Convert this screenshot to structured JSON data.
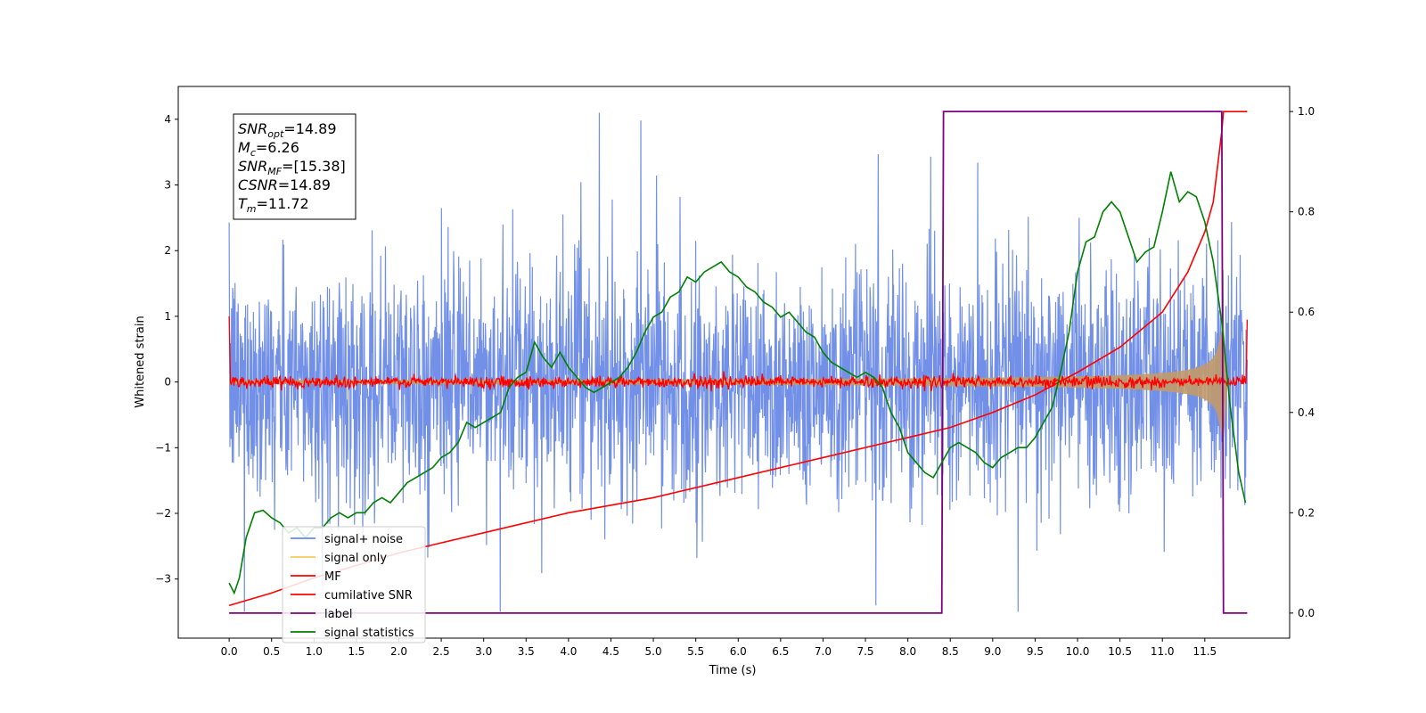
{
  "chart_data": {
    "type": "line",
    "xlabel": "Time (s)",
    "ylabel_left": "Whitened strain",
    "ylabel_right": "",
    "x_ticks": [
      "0.0",
      "0.5",
      "1.0",
      "1.5",
      "2.0",
      "2.5",
      "3.0",
      "3.5",
      "4.0",
      "4.5",
      "5.0",
      "5.5",
      "6.0",
      "6.5",
      "7.0",
      "7.5",
      "8.0",
      "8.5",
      "9.0",
      "9.5",
      "10.0",
      "10.5",
      "11.0",
      "11.5"
    ],
    "y_left_ticks": [
      "4",
      "3",
      "2",
      "1",
      "0",
      "−1",
      "−2",
      "−3"
    ],
    "y_right_ticks": [
      "1.0",
      "0.8",
      "0.6",
      "0.4",
      "0.2",
      "0.0"
    ],
    "xlim": [
      -0.6,
      12.5
    ],
    "ylim_left": [
      -3.9,
      4.5
    ],
    "ylim_right": [
      -0.05,
      1.05
    ],
    "legend_position": "lower-left",
    "annotation": {
      "lines": [
        {
          "name": "SNR",
          "sub": "opt",
          "value": "=14.89"
        },
        {
          "name": "M",
          "sub": "c",
          "value": "=6.26"
        },
        {
          "name": "SNR",
          "sub": "MF",
          "value": "=[15.38]"
        },
        {
          "name": "CSNR",
          "sub": "",
          "value": "=14.89"
        },
        {
          "name": "T",
          "sub": "m",
          "value": "=11.72"
        }
      ]
    },
    "series": [
      {
        "name": "signal+ noise",
        "color": "#6a8ae6",
        "axis": "left",
        "kind": "noise",
        "x_range": [
          0.0,
          12.0
        ],
        "approx_band": [
          -1.4,
          1.4
        ],
        "approx_extremes": [
          -3.5,
          4.1
        ]
      },
      {
        "name": "signal only",
        "color": "#f5c860",
        "axis": "left",
        "kind": "chirp",
        "x_range": [
          0.0,
          12.0
        ],
        "amplitude_at_start": 0.03,
        "amplitude_at_end": 0.9,
        "merger_time": 11.72
      },
      {
        "name": "MF",
        "color": "#ff0000",
        "axis": "left",
        "kind": "noise",
        "x_range": [
          0.0,
          12.0
        ],
        "approx_band": [
          -0.1,
          0.1
        ],
        "edge_values": [
          1.0,
          0.95
        ]
      },
      {
        "name": "cumilative SNR",
        "color": "#ff0000",
        "axis": "right",
        "x": [
          0.0,
          0.5,
          1.0,
          2.0,
          3.0,
          4.0,
          5.0,
          6.0,
          7.0,
          8.0,
          8.5,
          9.0,
          9.5,
          10.0,
          10.5,
          11.0,
          11.3,
          11.5,
          11.6,
          11.7,
          11.72,
          12.0
        ],
        "y": [
          0.015,
          0.04,
          0.07,
          0.12,
          0.16,
          0.2,
          0.23,
          0.27,
          0.31,
          0.35,
          0.37,
          0.4,
          0.435,
          0.48,
          0.53,
          0.6,
          0.68,
          0.76,
          0.82,
          0.96,
          1.0,
          1.0
        ]
      },
      {
        "name": "label",
        "color": "#800080",
        "axis": "right",
        "x": [
          0.0,
          8.4,
          8.42,
          11.7,
          11.72,
          12.0
        ],
        "y": [
          0.0,
          0.0,
          1.0,
          1.0,
          0.0,
          0.0
        ]
      },
      {
        "name": "signal statistics",
        "color": "#008000",
        "axis": "right",
        "x": [
          0.0,
          0.06,
          0.12,
          0.2,
          0.3,
          0.4,
          0.5,
          0.6,
          0.7,
          0.8,
          0.9,
          1.0,
          1.1,
          1.2,
          1.3,
          1.4,
          1.5,
          1.6,
          1.7,
          1.8,
          1.9,
          2.0,
          2.1,
          2.2,
          2.3,
          2.4,
          2.5,
          2.6,
          2.7,
          2.8,
          2.9,
          3.0,
          3.1,
          3.2,
          3.3,
          3.4,
          3.5,
          3.6,
          3.7,
          3.8,
          3.9,
          4.0,
          4.1,
          4.2,
          4.3,
          4.4,
          4.5,
          4.6,
          4.7,
          4.8,
          4.9,
          5.0,
          5.1,
          5.2,
          5.3,
          5.4,
          5.5,
          5.6,
          5.7,
          5.8,
          5.9,
          6.0,
          6.1,
          6.2,
          6.3,
          6.4,
          6.5,
          6.6,
          6.7,
          6.8,
          6.9,
          7.0,
          7.1,
          7.2,
          7.3,
          7.4,
          7.5,
          7.6,
          7.7,
          7.8,
          7.9,
          8.0,
          8.1,
          8.2,
          8.3,
          8.4,
          8.5,
          8.6,
          8.7,
          8.8,
          8.9,
          9.0,
          9.1,
          9.2,
          9.3,
          9.4,
          9.5,
          9.6,
          9.7,
          9.8,
          9.9,
          10.0,
          10.1,
          10.2,
          10.3,
          10.4,
          10.5,
          10.6,
          10.7,
          10.8,
          10.9,
          11.0,
          11.1,
          11.2,
          11.3,
          11.4,
          11.5,
          11.6,
          11.7,
          11.8,
          11.9,
          11.98
        ],
        "y": [
          0.06,
          0.04,
          0.07,
          0.15,
          0.2,
          0.205,
          0.19,
          0.18,
          0.16,
          0.17,
          0.15,
          0.17,
          0.17,
          0.19,
          0.2,
          0.19,
          0.2,
          0.2,
          0.22,
          0.23,
          0.22,
          0.24,
          0.26,
          0.27,
          0.28,
          0.29,
          0.31,
          0.32,
          0.34,
          0.38,
          0.37,
          0.38,
          0.39,
          0.4,
          0.45,
          0.47,
          0.48,
          0.54,
          0.51,
          0.49,
          0.52,
          0.49,
          0.47,
          0.45,
          0.44,
          0.45,
          0.46,
          0.47,
          0.49,
          0.52,
          0.56,
          0.59,
          0.6,
          0.63,
          0.64,
          0.67,
          0.66,
          0.68,
          0.69,
          0.7,
          0.68,
          0.67,
          0.65,
          0.64,
          0.62,
          0.61,
          0.59,
          0.6,
          0.58,
          0.56,
          0.55,
          0.52,
          0.5,
          0.49,
          0.48,
          0.47,
          0.48,
          0.47,
          0.45,
          0.4,
          0.37,
          0.32,
          0.3,
          0.28,
          0.27,
          0.3,
          0.33,
          0.34,
          0.33,
          0.32,
          0.3,
          0.29,
          0.31,
          0.32,
          0.33,
          0.33,
          0.35,
          0.38,
          0.41,
          0.48,
          0.56,
          0.68,
          0.74,
          0.75,
          0.8,
          0.82,
          0.8,
          0.75,
          0.7,
          0.72,
          0.73,
          0.8,
          0.88,
          0.82,
          0.84,
          0.83,
          0.78,
          0.7,
          0.58,
          0.41,
          0.28,
          0.22
        ]
      }
    ]
  }
}
